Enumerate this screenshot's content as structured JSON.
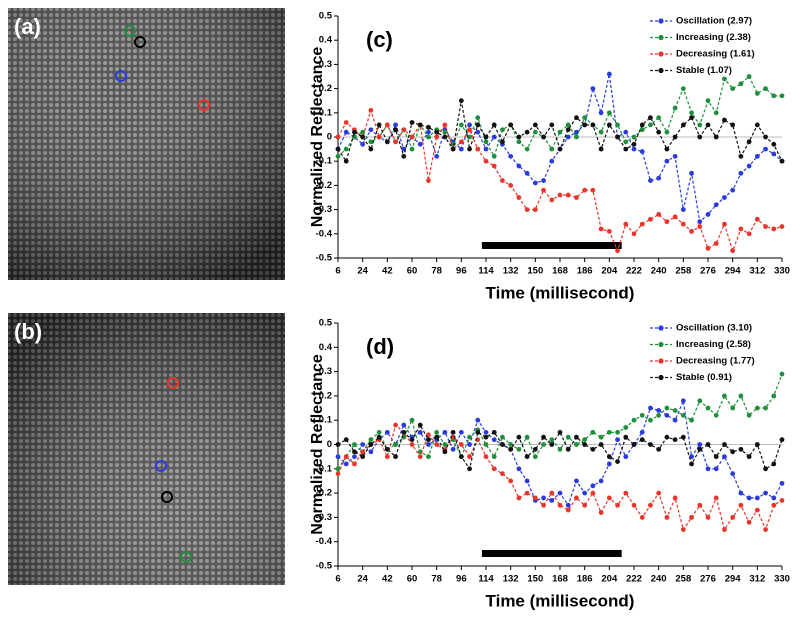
{
  "images": [
    {
      "label": "(a)"
    },
    {
      "label": "(b)"
    }
  ],
  "chart_data": [
    {
      "type": "line",
      "panel": "(c)",
      "xlabel": "Time (millisecond)",
      "ylabel": "Normalized Reflectance",
      "x": [
        6,
        12,
        18,
        24,
        30,
        36,
        42,
        48,
        54,
        60,
        66,
        72,
        78,
        84,
        90,
        96,
        102,
        108,
        114,
        120,
        126,
        132,
        138,
        144,
        150,
        156,
        162,
        168,
        174,
        180,
        186,
        192,
        198,
        204,
        210,
        216,
        222,
        228,
        234,
        240,
        246,
        252,
        258,
        264,
        270,
        276,
        282,
        288,
        294,
        300,
        306,
        312,
        318,
        324,
        330
      ],
      "xlim": [
        6,
        330
      ],
      "xticks": [
        6,
        24,
        42,
        60,
        78,
        96,
        114,
        132,
        150,
        168,
        186,
        204,
        222,
        240,
        258,
        276,
        294,
        312,
        330
      ],
      "ylim": [
        -0.5,
        0.5
      ],
      "yticks": [
        0.5,
        0.4,
        0.3,
        0.2,
        0.1,
        0,
        -0.1,
        -0.2,
        -0.3,
        -0.4,
        -0.5
      ],
      "stimulus": [
        111,
        213
      ],
      "legend": "upper right",
      "series": [
        {
          "name": "Oscillation (2.97)",
          "color": "#2b3bdb",
          "values": [
            -0.05,
            0.02,
            0.0,
            -0.03,
            0.03,
            0.0,
            -0.02,
            0.05,
            -0.05,
            0.0,
            -0.03,
            0.02,
            -0.08,
            0.03,
            -0.02,
            -0.05,
            0.05,
            0.02,
            -0.05,
            0.0,
            -0.03,
            -0.08,
            -0.12,
            -0.15,
            -0.19,
            -0.18,
            -0.1,
            -0.05,
            0.0,
            0.02,
            0.05,
            0.2,
            0.1,
            0.26,
            0.0,
            0.02,
            -0.05,
            -0.06,
            -0.18,
            -0.17,
            -0.1,
            -0.08,
            -0.3,
            -0.15,
            -0.35,
            -0.32,
            -0.28,
            -0.25,
            -0.22,
            -0.15,
            -0.12,
            -0.08,
            -0.05,
            -0.07,
            -0.1
          ]
        },
        {
          "name": "Increasing (2.38)",
          "color": "#1e8f3a",
          "values": [
            -0.08,
            -0.05,
            0.0,
            0.02,
            -0.02,
            0.0,
            0.05,
            -0.02,
            0.03,
            -0.05,
            0.05,
            0.0,
            0.03,
            0.02,
            -0.03,
            0.05,
            0.0,
            0.08,
            -0.02,
            -0.08,
            0.03,
            0.05,
            -0.02,
            -0.05,
            0.02,
            0.0,
            -0.05,
            0.02,
            0.05,
            0.0,
            0.08,
            0.05,
            0.02,
            0.1,
            0.05,
            -0.02,
            0.0,
            0.03,
            0.05,
            0.08,
            0.02,
            0.12,
            0.2,
            0.1,
            0.05,
            0.15,
            0.1,
            0.24,
            0.2,
            0.22,
            0.25,
            0.18,
            0.2,
            0.17,
            0.17
          ]
        },
        {
          "name": "Decreasing (1.61)",
          "color": "#e8362c",
          "values": [
            0.0,
            0.06,
            0.03,
            0.0,
            0.11,
            0.0,
            0.05,
            -0.02,
            0.03,
            0.0,
            0.05,
            -0.18,
            0.0,
            0.05,
            -0.05,
            -0.02,
            0.03,
            -0.05,
            -0.1,
            -0.12,
            -0.18,
            -0.2,
            -0.25,
            -0.3,
            -0.3,
            -0.22,
            -0.26,
            -0.24,
            -0.24,
            -0.25,
            -0.22,
            -0.22,
            -0.38,
            -0.39,
            -0.47,
            -0.36,
            -0.4,
            -0.36,
            -0.34,
            -0.32,
            -0.35,
            -0.33,
            -0.36,
            -0.39,
            -0.37,
            -0.46,
            -0.44,
            -0.36,
            -0.47,
            -0.38,
            -0.4,
            -0.34,
            -0.37,
            -0.38,
            -0.37
          ]
        },
        {
          "name": "Stable (1.07)",
          "color": "#111111",
          "values": [
            -0.05,
            -0.1,
            0.02,
            0.0,
            -0.05,
            0.05,
            -0.02,
            0.03,
            -0.08,
            0.06,
            0.05,
            0.04,
            0.02,
            0.0,
            -0.05,
            0.15,
            -0.05,
            0.05,
            0.0,
            0.05,
            -0.02,
            0.05,
            0.0,
            0.02,
            0.05,
            0.0,
            0.05,
            -0.05,
            0.03,
            0.08,
            0.05,
            0.05,
            -0.05,
            0.05,
            0.0,
            -0.05,
            -0.03,
            0.05,
            0.08,
            0.02,
            -0.05,
            0.0,
            0.05,
            0.08,
            0.0,
            0.05,
            0.0,
            0.07,
            0.05,
            -0.08,
            -0.02,
            0.05,
            0.0,
            -0.03,
            -0.1
          ]
        }
      ]
    },
    {
      "type": "line",
      "panel": "(d)",
      "xlabel": "Time (millisecond)",
      "ylabel": "Normalized Reflectance",
      "x": [
        6,
        12,
        18,
        24,
        30,
        36,
        42,
        48,
        54,
        60,
        66,
        72,
        78,
        84,
        90,
        96,
        102,
        108,
        114,
        120,
        126,
        132,
        138,
        144,
        150,
        156,
        162,
        168,
        174,
        180,
        186,
        192,
        198,
        204,
        210,
        216,
        222,
        228,
        234,
        240,
        246,
        252,
        258,
        264,
        270,
        276,
        282,
        288,
        294,
        300,
        306,
        312,
        318,
        324,
        330
      ],
      "xlim": [
        6,
        330
      ],
      "xticks": [
        6,
        24,
        42,
        60,
        78,
        96,
        114,
        132,
        150,
        168,
        186,
        204,
        222,
        240,
        258,
        276,
        294,
        312,
        330
      ],
      "ylim": [
        -0.5,
        0.5
      ],
      "yticks": [
        0.5,
        0.4,
        0.3,
        0.2,
        0.1,
        0,
        -0.1,
        -0.2,
        -0.3,
        -0.4,
        -0.5
      ],
      "stimulus": [
        111,
        213
      ],
      "legend": "upper right",
      "series": [
        {
          "name": "Oscillation (3.10)",
          "color": "#2b3bdb",
          "values": [
            -0.05,
            -0.08,
            -0.05,
            0.0,
            -0.03,
            0.02,
            0.05,
            0.0,
            0.08,
            0.03,
            0.05,
            0.0,
            0.02,
            0.05,
            -0.02,
            0.05,
            0.0,
            0.1,
            0.05,
            0.02,
            0.0,
            -0.02,
            -0.1,
            -0.15,
            -0.23,
            -0.22,
            -0.23,
            -0.2,
            -0.25,
            -0.15,
            -0.2,
            -0.17,
            -0.15,
            -0.08,
            0.02,
            -0.05,
            0.0,
            0.05,
            0.15,
            0.14,
            0.12,
            0.1,
            0.18,
            -0.05,
            0.0,
            -0.1,
            -0.1,
            -0.05,
            -0.12,
            -0.2,
            -0.22,
            -0.22,
            -0.2,
            -0.22,
            -0.16
          ]
        },
        {
          "name": "Increasing (2.58)",
          "color": "#1e8f3a",
          "values": [
            -0.1,
            -0.05,
            0.0,
            -0.03,
            0.02,
            0.05,
            -0.02,
            0.0,
            0.03,
            0.1,
            -0.03,
            -0.05,
            0.05,
            0.0,
            0.02,
            -0.05,
            0.03,
            0.06,
            0.0,
            -0.05,
            0.03,
            0.0,
            -0.02,
            0.03,
            -0.05,
            0.0,
            0.02,
            -0.02,
            0.03,
            0.0,
            0.02,
            0.05,
            0.03,
            0.05,
            0.05,
            0.07,
            0.1,
            0.12,
            0.1,
            0.12,
            0.15,
            0.14,
            0.12,
            0.1,
            0.18,
            0.15,
            0.12,
            0.2,
            0.15,
            0.2,
            0.12,
            0.15,
            0.15,
            0.2,
            0.29
          ]
        },
        {
          "name": "Decreasing (1.77)",
          "color": "#e8362c",
          "values": [
            -0.12,
            -0.05,
            -0.08,
            -0.03,
            0.0,
            0.02,
            -0.05,
            0.08,
            0.05,
            0.0,
            -0.05,
            0.04,
            0.0,
            -0.02,
            0.03,
            0.0,
            -0.05,
            0.02,
            -0.05,
            -0.1,
            -0.12,
            -0.15,
            -0.22,
            -0.2,
            -0.22,
            -0.25,
            -0.2,
            -0.25,
            -0.27,
            -0.22,
            -0.25,
            -0.2,
            -0.28,
            -0.22,
            -0.25,
            -0.2,
            -0.25,
            -0.3,
            -0.25,
            -0.2,
            -0.3,
            -0.22,
            -0.35,
            -0.3,
            -0.25,
            -0.3,
            -0.22,
            -0.35,
            -0.3,
            -0.25,
            -0.32,
            -0.27,
            -0.35,
            -0.25,
            -0.23
          ]
        },
        {
          "name": "Stable (0.91)",
          "color": "#111111",
          "values": [
            0.0,
            0.02,
            -0.03,
            -0.05,
            0.0,
            0.03,
            -0.02,
            -0.05,
            0.05,
            0.02,
            0.08,
            0.02,
            0.03,
            -0.03,
            0.05,
            -0.05,
            -0.1,
            0.05,
            0.03,
            0.05,
            0.0,
            -0.02,
            0.03,
            -0.05,
            -0.02,
            0.03,
            0.0,
            0.05,
            -0.02,
            0.03,
            0.0,
            -0.02,
            0.0,
            -0.05,
            -0.07,
            0.03,
            0.0,
            0.02,
            0.0,
            -0.02,
            0.03,
            0.02,
            0.03,
            -0.08,
            -0.02,
            0.0,
            -0.05,
            0.0,
            -0.03,
            -0.02,
            -0.05,
            0.0,
            -0.1,
            -0.08,
            0.02
          ]
        }
      ]
    }
  ]
}
